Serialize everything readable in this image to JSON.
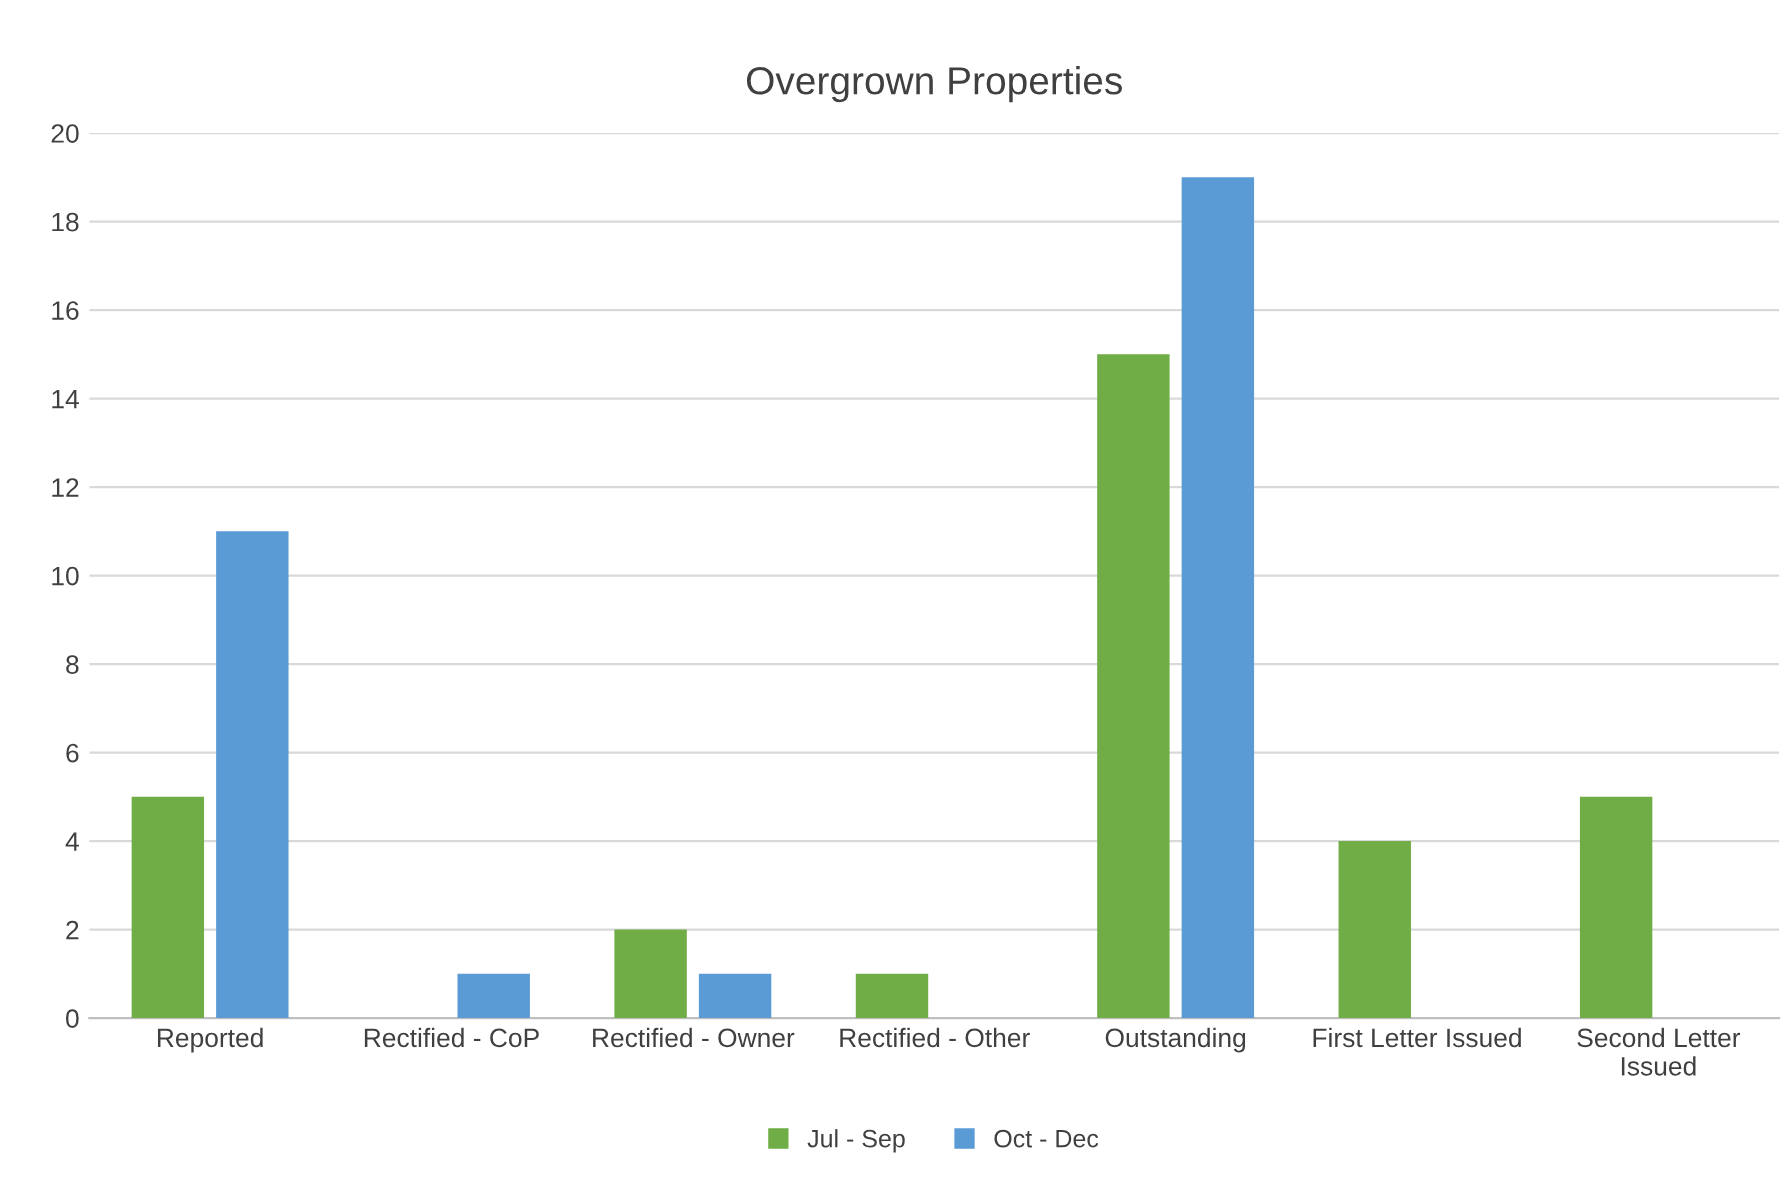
{
  "chart_data": {
    "type": "bar",
    "title": "Overgrown Properties",
    "categories": [
      "Reported",
      "Rectified - CoP",
      "Rectified - Owner",
      "Rectified - Other",
      "Outstanding",
      "First Letter Issued",
      "Second Letter\nIssued"
    ],
    "series": [
      {
        "name": "Jul - Sep",
        "color": "#70ad47",
        "values": [
          5,
          null,
          2,
          1,
          15,
          4,
          5
        ]
      },
      {
        "name": "Oct - Dec",
        "color": "#5b9bd5",
        "values": [
          11,
          1,
          1,
          null,
          19,
          null,
          null
        ]
      }
    ],
    "ylim": [
      0,
      20
    ],
    "yticks": [
      0,
      2,
      4,
      6,
      8,
      10,
      12,
      14,
      16,
      18,
      20
    ],
    "grid": "y",
    "legend": "bottom"
  }
}
